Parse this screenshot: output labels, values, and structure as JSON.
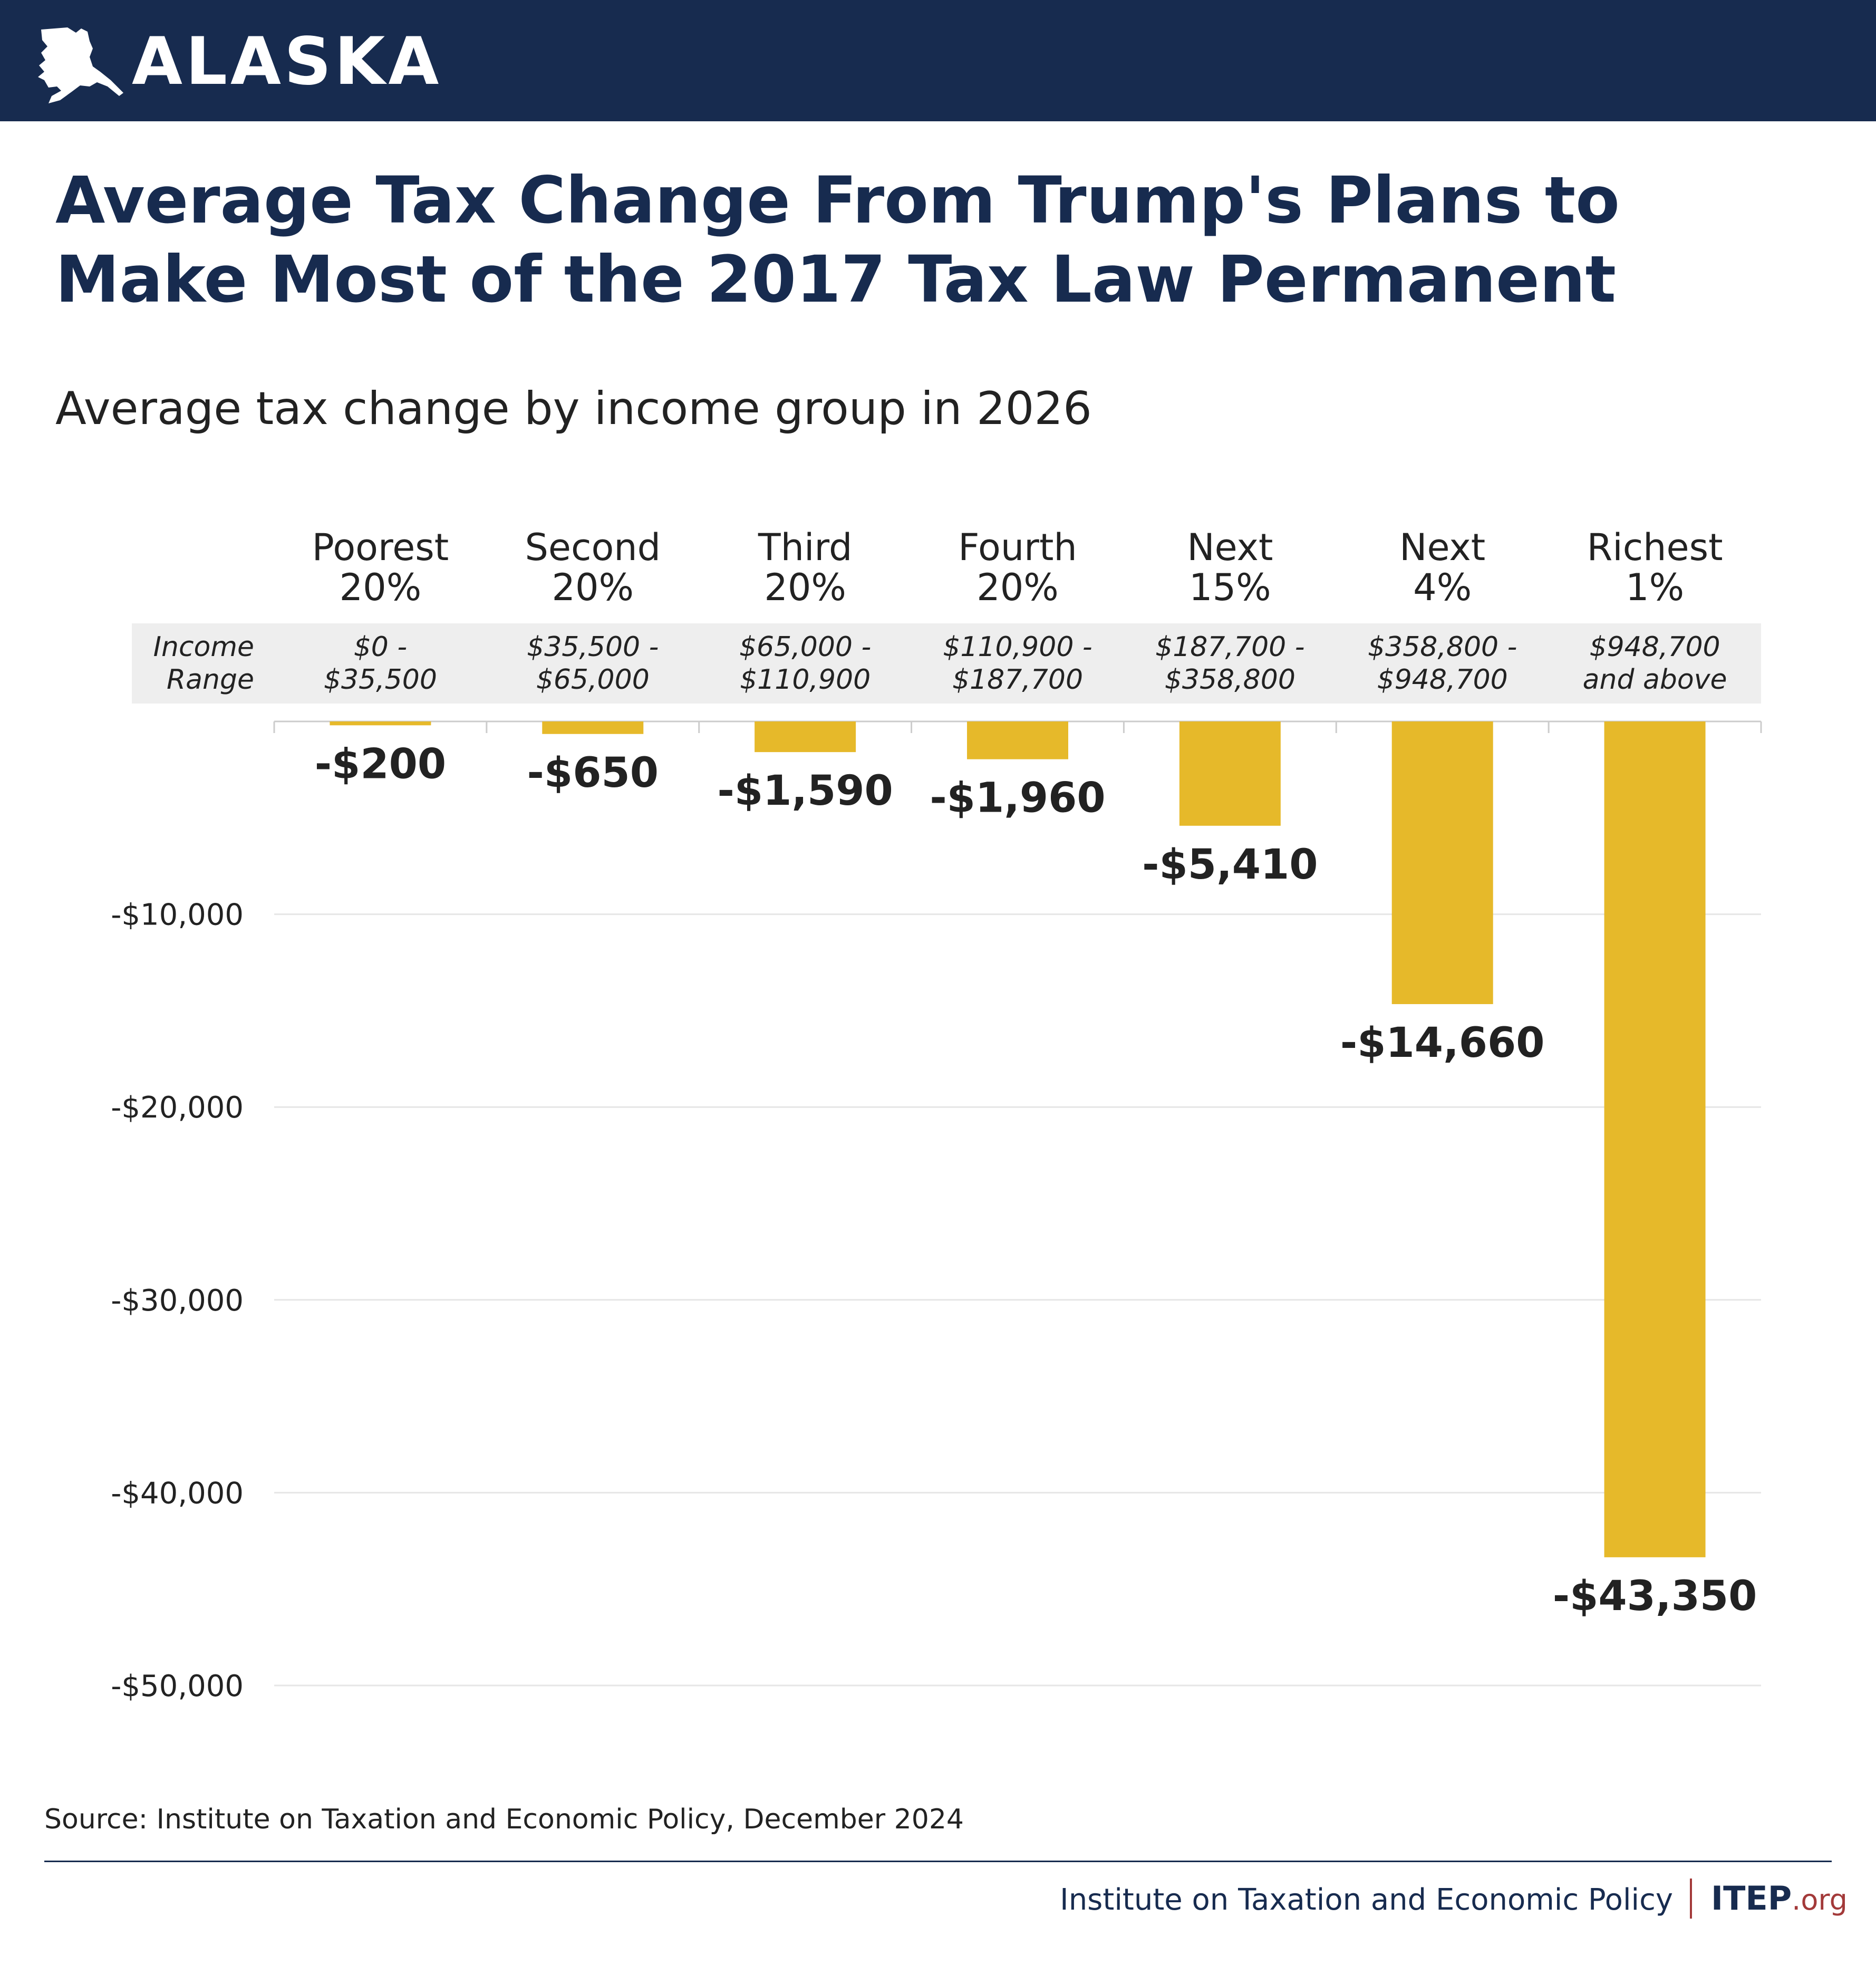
{
  "header": {
    "state": "ALASKA"
  },
  "title": "Average Tax Change From Trump's Plans to Make Most of the 2017 Tax Law Permanent",
  "subtitle": "Average tax change by income group in 2026",
  "source": "Source: Institute on Taxation and Economic Policy, December 2024",
  "footer": {
    "org": "Institute on Taxation and Economic Policy",
    "logo_main": "ITEP",
    "logo_suffix": ".org"
  },
  "colors": {
    "header": "#172b4f",
    "bar": "#e6b92a",
    "accent": "#a33a3a",
    "range_band": "#eeeeee"
  },
  "chart_data": {
    "type": "bar",
    "categories": [
      [
        "Poorest",
        "20%"
      ],
      [
        "Second",
        "20%"
      ],
      [
        "Third",
        "20%"
      ],
      [
        "Fourth",
        "20%"
      ],
      [
        "Next",
        "15%"
      ],
      [
        "Next",
        "4%"
      ],
      [
        "Richest",
        "1%"
      ]
    ],
    "income_range_label": [
      "Income",
      "Range"
    ],
    "income_ranges": [
      [
        "$0 -",
        "$35,500"
      ],
      [
        "$35,500 -",
        "$65,000"
      ],
      [
        "$65,000 -",
        "$110,900"
      ],
      [
        "$110,900 -",
        "$187,700"
      ],
      [
        "$187,700 -",
        "$358,800"
      ],
      [
        "$358,800 -",
        "$948,700"
      ],
      [
        "$948,700",
        "and above"
      ]
    ],
    "values": [
      -200,
      -650,
      -1590,
      -1960,
      -5410,
      -14660,
      -43350
    ],
    "value_labels": [
      "-$200",
      "-$650",
      "-$1,590",
      "-$1,960",
      "-$5,410",
      "-$14,660",
      "-$43,350"
    ],
    "ylim": [
      -50000,
      0
    ],
    "yticks": [
      -10000,
      -20000,
      -30000,
      -40000,
      -50000
    ],
    "ytick_labels": [
      "-$10,000",
      "-$20,000",
      "-$30,000",
      "-$40,000",
      "-$50,000"
    ],
    "grid": true
  }
}
